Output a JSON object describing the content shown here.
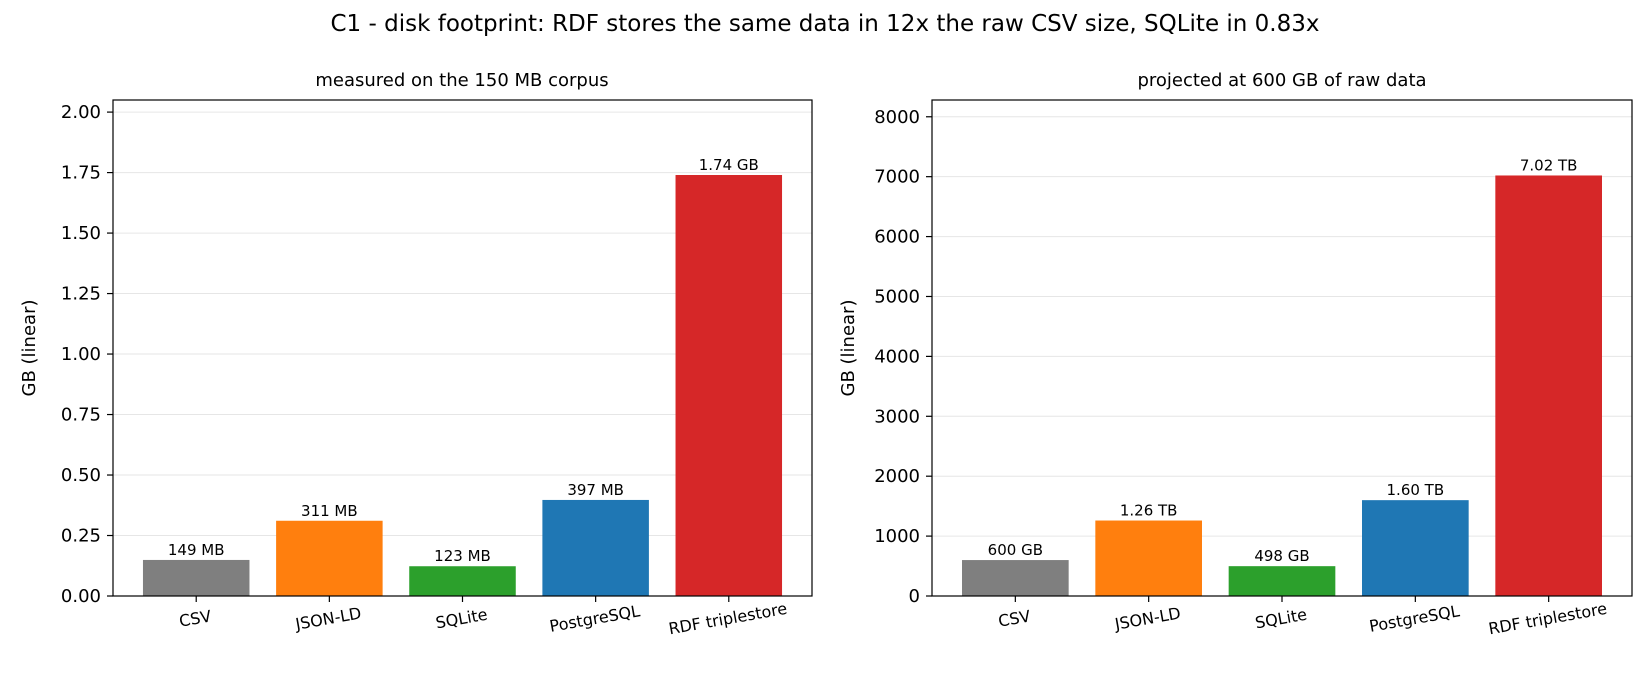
{
  "figure": {
    "title": "C1 - disk footprint: RDF stores the same data in 12x the raw CSV size, SQLite in 0.83x"
  },
  "chart_data": [
    {
      "type": "bar",
      "title": "measured on the 150 MB corpus",
      "xlabel": "",
      "ylabel": "GB (linear)",
      "categories": [
        "CSV",
        "JSON-LD",
        "SQLite",
        "PostgreSQL",
        "RDF triplestore"
      ],
      "values": [
        0.149,
        0.311,
        0.123,
        0.397,
        1.74
      ],
      "data_labels": [
        "149 MB",
        "311 MB",
        "123 MB",
        "397 MB",
        "1.74 GB"
      ],
      "colors": [
        "#7f7f7f",
        "#ff7f0e",
        "#2ca02c",
        "#1f77b4",
        "#d62728"
      ],
      "ylim": [
        0,
        2.05
      ],
      "yticks": [
        0,
        0.25,
        0.5,
        0.75,
        1.0,
        1.25,
        1.5,
        1.75,
        2.0
      ],
      "ytick_labels": [
        "0.00",
        "0.25",
        "0.50",
        "0.75",
        "1.00",
        "1.25",
        "1.50",
        "1.75",
        "2.00"
      ],
      "grid": "y",
      "legend": "none"
    },
    {
      "type": "bar",
      "title": "projected at 600 GB of raw data",
      "xlabel": "",
      "ylabel": "GB (linear)",
      "categories": [
        "CSV",
        "JSON-LD",
        "SQLite",
        "PostgreSQL",
        "RDF triplestore"
      ],
      "values": [
        600,
        1260,
        498,
        1600,
        7020
      ],
      "data_labels": [
        "600 GB",
        "1.26 TB",
        "498 GB",
        "1.60 TB",
        "7.02 TB"
      ],
      "colors": [
        "#7f7f7f",
        "#ff7f0e",
        "#2ca02c",
        "#1f77b4",
        "#d62728"
      ],
      "ylim": [
        0,
        8280
      ],
      "yticks": [
        0,
        1000,
        2000,
        3000,
        4000,
        5000,
        6000,
        7000,
        8000
      ],
      "ytick_labels": [
        "0",
        "1000",
        "2000",
        "3000",
        "4000",
        "5000",
        "6000",
        "7000",
        "8000"
      ],
      "grid": "y",
      "legend": "none"
    }
  ]
}
